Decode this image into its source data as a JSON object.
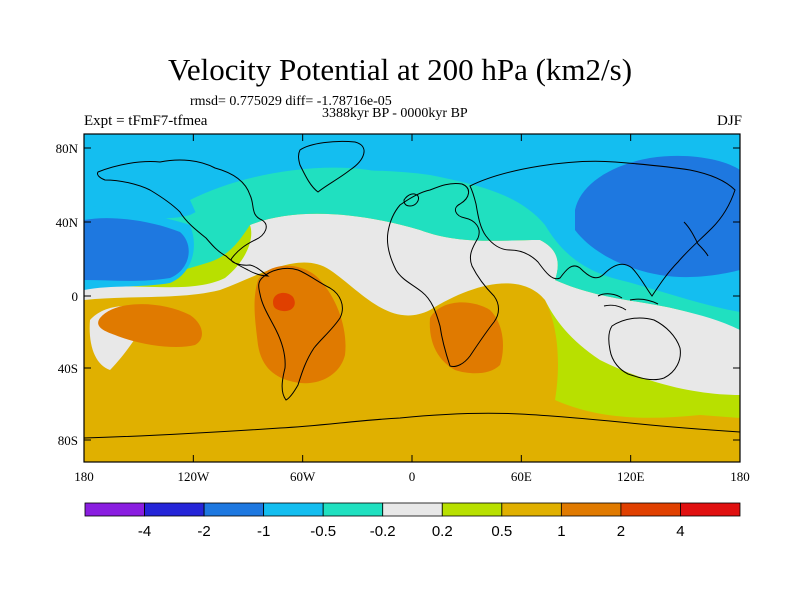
{
  "header": {
    "title": "Velocity Potential at 200 hPa (km2/s)",
    "stats": "rmsd= 0.775029 diff= -1.78716e-05",
    "period": "3388kyr BP - 0000kyr BP",
    "experiment": "Expt = tFmF7-tfmea",
    "season": "DJF"
  },
  "axes": {
    "lat_ticks": [
      "80N",
      "40N",
      "0",
      "40S",
      "80S"
    ],
    "lon_ticks": [
      "180",
      "120W",
      "60W",
      "0",
      "60E",
      "120E",
      "180"
    ]
  },
  "colorbar": {
    "labels": [
      "-4",
      "-2",
      "-1",
      "-0.5",
      "-0.2",
      "0.2",
      "0.5",
      "1",
      "2",
      "4"
    ],
    "colors": [
      "#8a1ee0",
      "#2525d8",
      "#1e78e0",
      "#14bef0",
      "#20e0c0",
      "#e8e8e8",
      "#b8e000",
      "#e0b000",
      "#e07a00",
      "#e04000",
      "#e01010"
    ]
  },
  "palette": {
    "level_minus1": "#1e78e0",
    "level_minus05": "#14bef0",
    "level_minus02": "#20e0c0",
    "level_zero": "#e8e8e8",
    "level_02": "#b8e000",
    "level_05": "#e0b000",
    "level_1": "#e07a00",
    "level_2": "#e04000"
  }
}
